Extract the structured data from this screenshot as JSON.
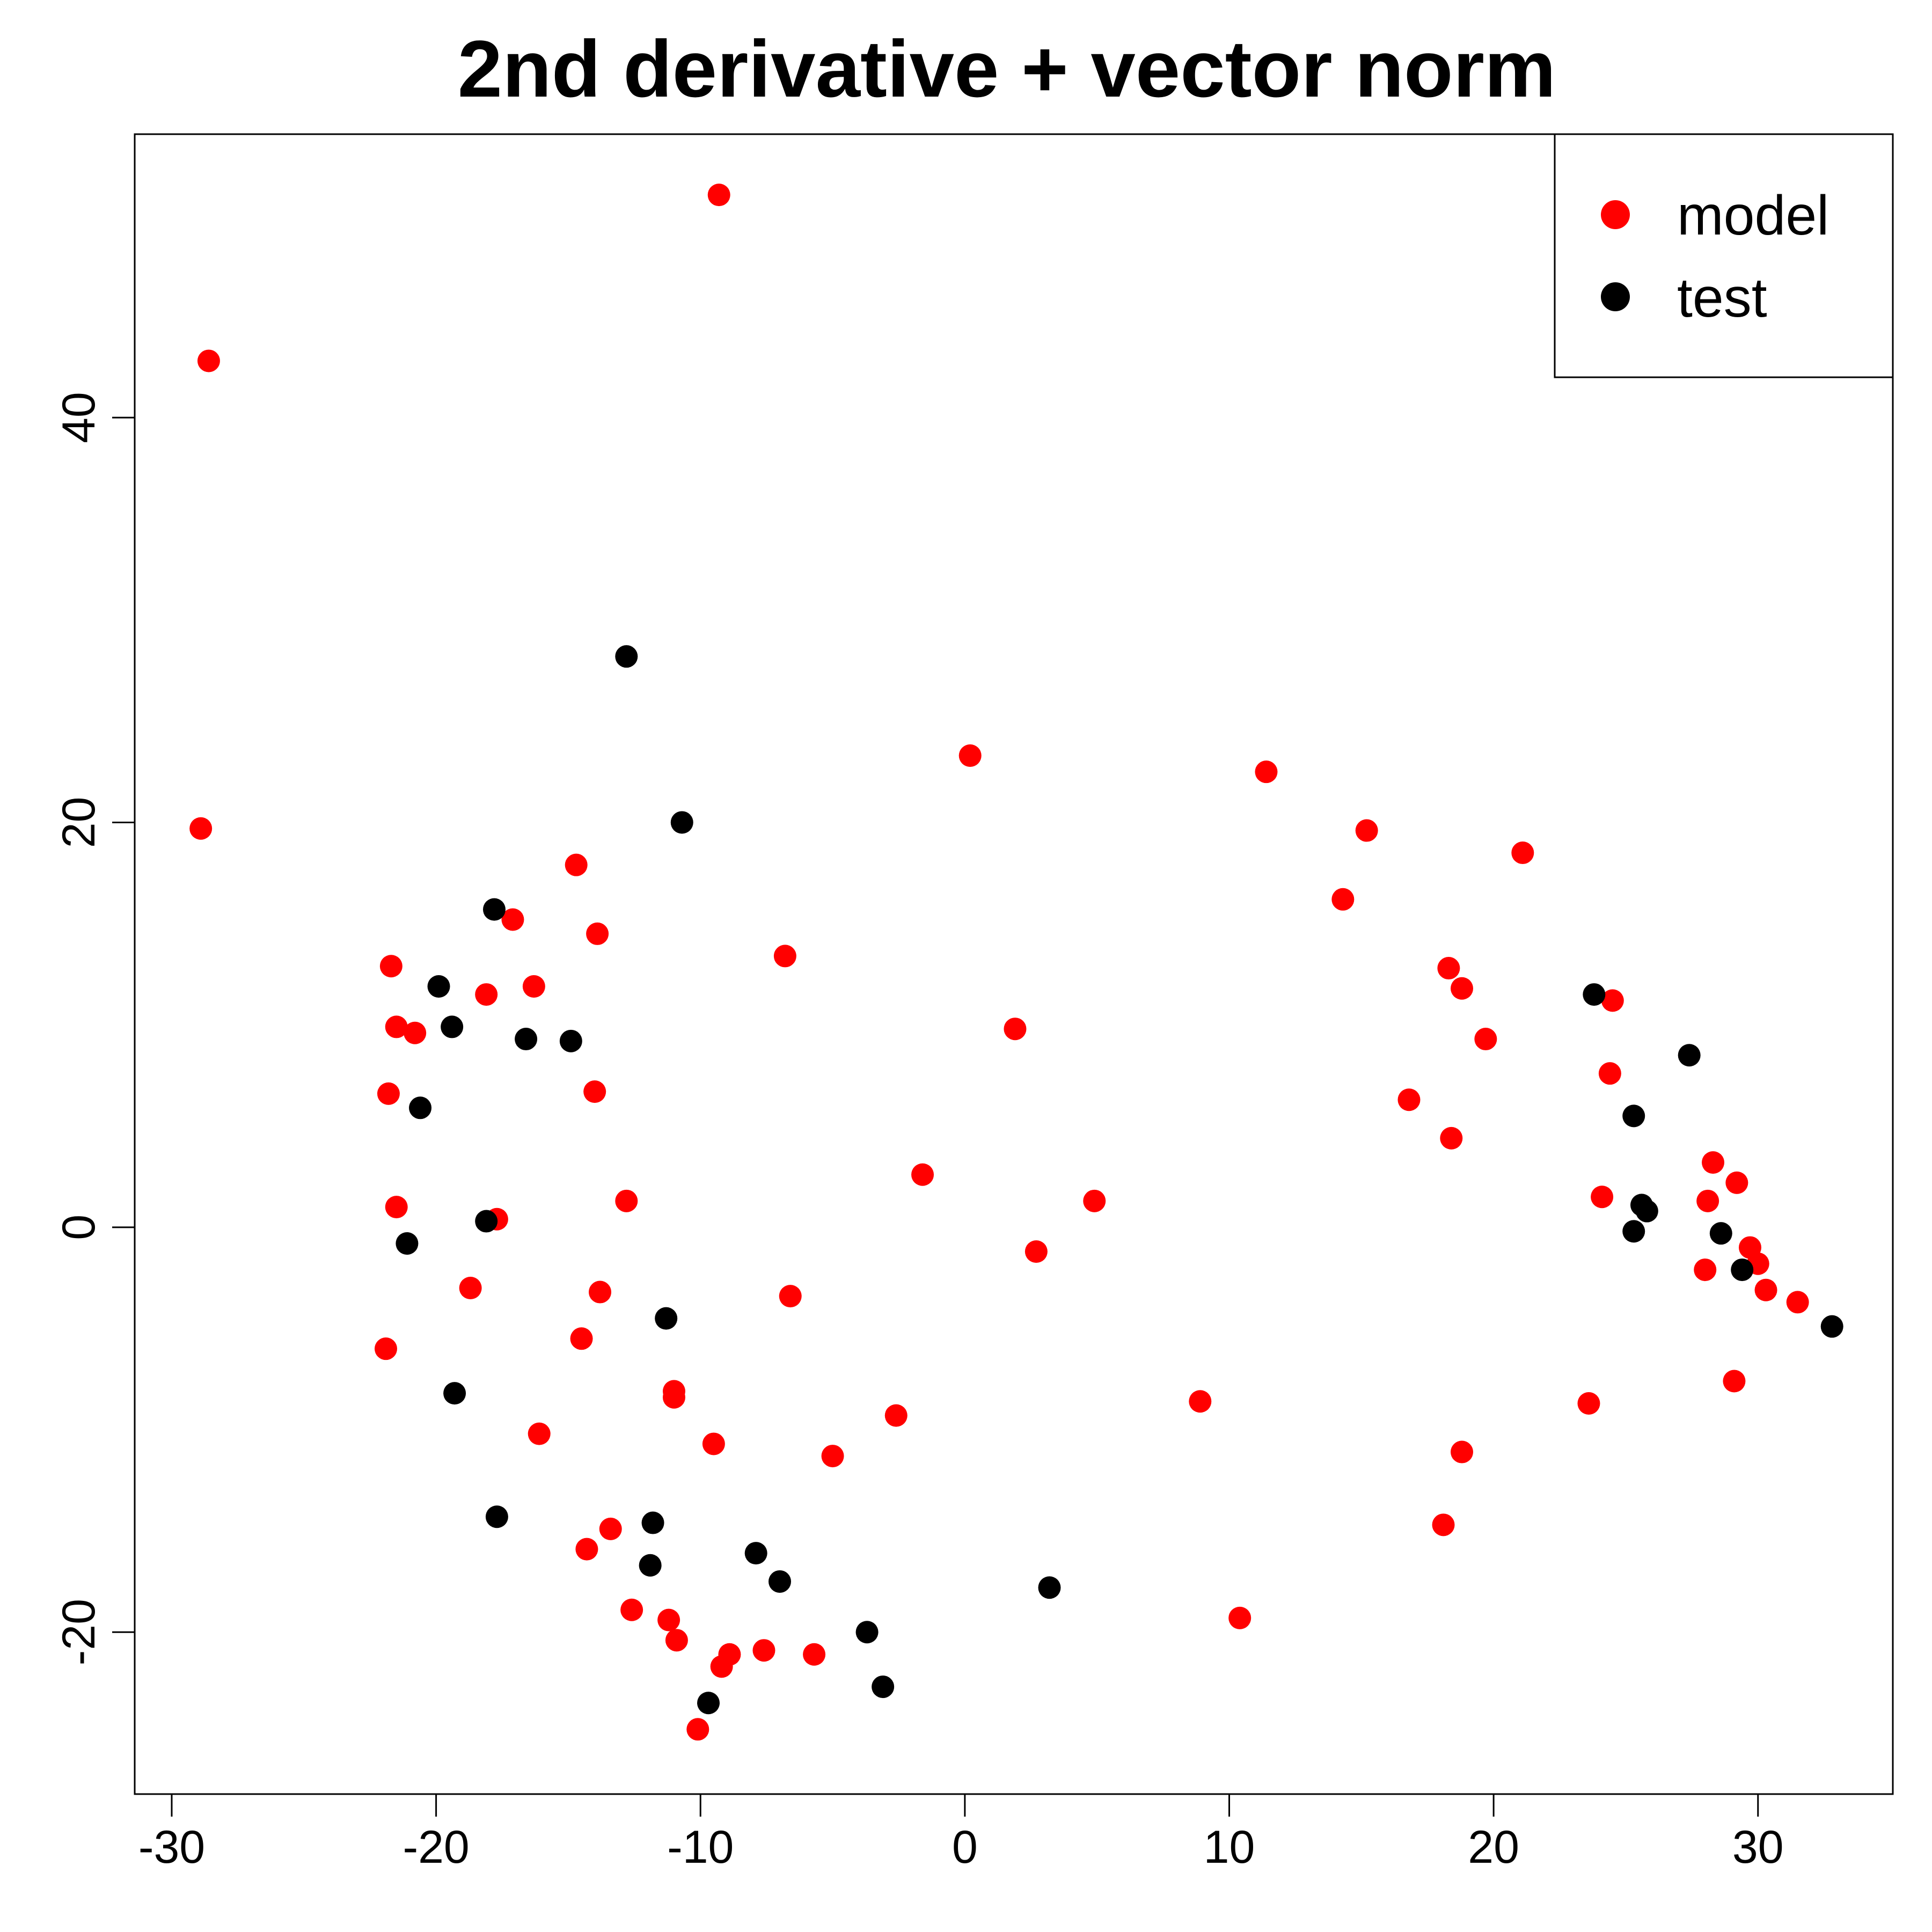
{
  "chart_data": {
    "type": "scatter",
    "title": "2nd derivative + vector norm",
    "xlabel": "",
    "ylabel": "",
    "xlim": [
      -31.4,
      35.1
    ],
    "ylim": [
      -28.0,
      54.0
    ],
    "xticks": [
      -30,
      -20,
      -10,
      0,
      10,
      20,
      30
    ],
    "yticks": [
      -20,
      0,
      20,
      40
    ],
    "grid": false,
    "legend_position": "top-right",
    "series": [
      {
        "name": "model",
        "color": "#ff0000",
        "points": [
          [
            -9.3,
            51.0
          ],
          [
            -28.6,
            42.8
          ],
          [
            -28.9,
            19.7
          ],
          [
            0.2,
            23.3
          ],
          [
            11.4,
            22.5
          ],
          [
            15.2,
            19.6
          ],
          [
            21.1,
            18.5
          ],
          [
            -14.7,
            17.9
          ],
          [
            14.3,
            16.2
          ],
          [
            -13.9,
            14.5
          ],
          [
            -17.1,
            15.2
          ],
          [
            -6.8,
            13.4
          ],
          [
            -21.7,
            12.9
          ],
          [
            -16.3,
            11.9
          ],
          [
            -18.1,
            11.5
          ],
          [
            -21.5,
            9.9
          ],
          [
            -20.8,
            9.6
          ],
          [
            1.9,
            9.8
          ],
          [
            18.3,
            12.8
          ],
          [
            18.8,
            11.8
          ],
          [
            19.7,
            9.3
          ],
          [
            24.5,
            11.2
          ],
          [
            24.4,
            7.6
          ],
          [
            16.8,
            6.3
          ],
          [
            18.4,
            4.4
          ],
          [
            -21.8,
            6.6
          ],
          [
            -14.0,
            6.7
          ],
          [
            -1.6,
            2.6
          ],
          [
            -12.8,
            1.3
          ],
          [
            4.9,
            1.3
          ],
          [
            -21.5,
            1.0
          ],
          [
            -17.7,
            0.4
          ],
          [
            24.1,
            1.5
          ],
          [
            28.3,
            3.2
          ],
          [
            29.2,
            2.2
          ],
          [
            28.1,
            1.3
          ],
          [
            2.7,
            -1.2
          ],
          [
            29.7,
            -1.0
          ],
          [
            30.0,
            -1.8
          ],
          [
            28.0,
            -2.1
          ],
          [
            30.3,
            -3.1
          ],
          [
            31.5,
            -3.7
          ],
          [
            -18.7,
            -3.0
          ],
          [
            -13.8,
            -3.2
          ],
          [
            -6.6,
            -3.4
          ],
          [
            -21.9,
            -6.0
          ],
          [
            -14.5,
            -5.5
          ],
          [
            29.1,
            -7.6
          ],
          [
            -11.0,
            -8.1
          ],
          [
            -11.0,
            -8.4
          ],
          [
            8.9,
            -8.6
          ],
          [
            23.6,
            -8.7
          ],
          [
            -2.6,
            -9.3
          ],
          [
            -16.1,
            -10.2
          ],
          [
            -9.5,
            -10.7
          ],
          [
            -5.0,
            -11.3
          ],
          [
            18.8,
            -11.1
          ],
          [
            18.1,
            -14.7
          ],
          [
            -13.4,
            -14.9
          ],
          [
            -14.3,
            -15.9
          ],
          [
            -12.6,
            -18.9
          ],
          [
            -11.2,
            -19.4
          ],
          [
            10.4,
            -19.3
          ],
          [
            -10.9,
            -20.4
          ],
          [
            -8.9,
            -21.1
          ],
          [
            -7.6,
            -20.9
          ],
          [
            -5.7,
            -21.1
          ],
          [
            -9.2,
            -21.7
          ],
          [
            -10.1,
            -24.8
          ]
        ]
      },
      {
        "name": "test",
        "color": "#000000",
        "points": [
          [
            -12.8,
            28.2
          ],
          [
            -10.7,
            20.0
          ],
          [
            -17.8,
            15.7
          ],
          [
            23.8,
            11.5
          ],
          [
            -19.9,
            11.9
          ],
          [
            -19.4,
            9.9
          ],
          [
            -16.6,
            9.3
          ],
          [
            -14.9,
            9.2
          ],
          [
            27.4,
            8.5
          ],
          [
            -20.6,
            5.9
          ],
          [
            25.3,
            5.5
          ],
          [
            -18.1,
            0.3
          ],
          [
            25.6,
            1.1
          ],
          [
            25.8,
            0.8
          ],
          [
            -21.1,
            -0.8
          ],
          [
            25.3,
            -0.2
          ],
          [
            28.6,
            -0.3
          ],
          [
            29.4,
            -2.1
          ],
          [
            32.8,
            -4.9
          ],
          [
            -11.3,
            -4.5
          ],
          [
            -19.3,
            -8.2
          ],
          [
            -17.7,
            -14.3
          ],
          [
            -11.8,
            -14.6
          ],
          [
            -7.9,
            -16.1
          ],
          [
            -11.9,
            -16.7
          ],
          [
            -7.0,
            -17.5
          ],
          [
            3.2,
            -17.8
          ],
          [
            -3.7,
            -20.0
          ],
          [
            -3.1,
            -22.7
          ],
          [
            -9.7,
            -23.5
          ]
        ]
      }
    ]
  }
}
